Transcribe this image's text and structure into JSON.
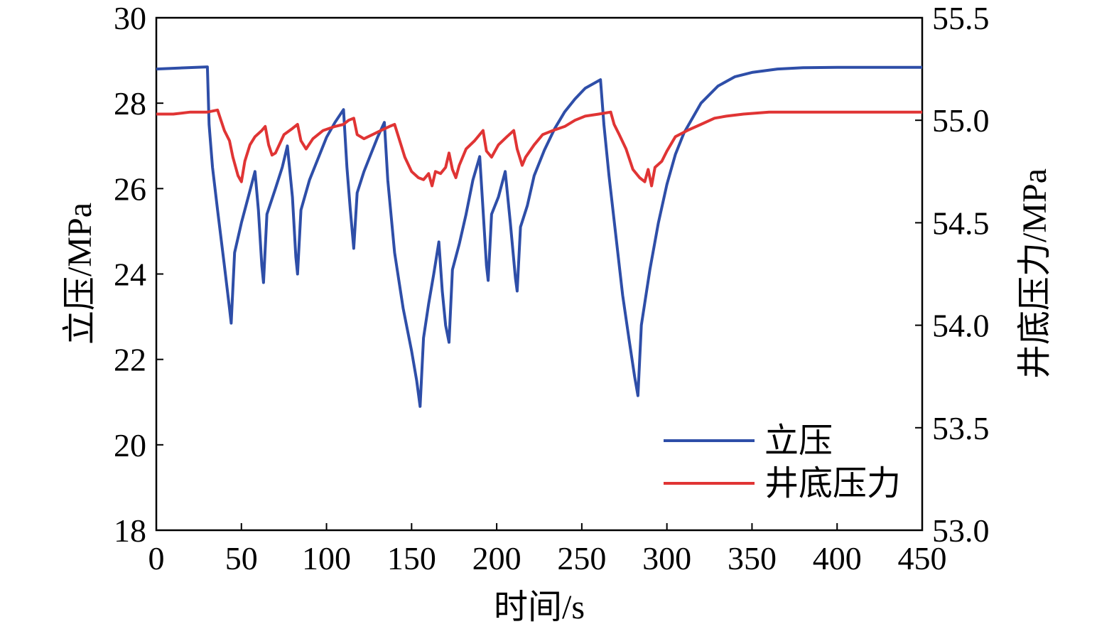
{
  "chart_data": {
    "type": "line",
    "xlabel": "时间/s",
    "ylabel_left": "立压/MPa",
    "ylabel_right": "井底压力/MPa",
    "xlim": [
      0,
      450
    ],
    "ylim_left": [
      18,
      30
    ],
    "ylim_right": [
      53.0,
      55.5
    ],
    "x_ticks": [
      "0",
      "50",
      "100",
      "150",
      "200",
      "250",
      "300",
      "350",
      "400",
      "450"
    ],
    "y_left_ticks": [
      "18",
      "20",
      "22",
      "24",
      "26",
      "28",
      "30"
    ],
    "y_right_ticks": [
      "53.0",
      "53.5",
      "54.0",
      "54.5",
      "55.0",
      "55.5"
    ],
    "grid": false,
    "legend_position": "bottom-right",
    "series": [
      {
        "name": "立压",
        "axis": "left",
        "color": "#2E4EA8",
        "points": [
          [
            0,
            28.8
          ],
          [
            30,
            28.85
          ],
          [
            31,
            27.5
          ],
          [
            33,
            26.5
          ],
          [
            36,
            25.5
          ],
          [
            40,
            24.2
          ],
          [
            43,
            23.2
          ],
          [
            44,
            22.85
          ],
          [
            46,
            24.5
          ],
          [
            50,
            25.2
          ],
          [
            54,
            25.8
          ],
          [
            58,
            26.4
          ],
          [
            60,
            25.5
          ],
          [
            62,
            24.2
          ],
          [
            63,
            23.8
          ],
          [
            65,
            25.4
          ],
          [
            70,
            26.0
          ],
          [
            74,
            26.5
          ],
          [
            77,
            27.0
          ],
          [
            80,
            25.8
          ],
          [
            82,
            24.4
          ],
          [
            83,
            24.0
          ],
          [
            85,
            25.5
          ],
          [
            90,
            26.2
          ],
          [
            95,
            26.7
          ],
          [
            100,
            27.2
          ],
          [
            105,
            27.55
          ],
          [
            110,
            27.85
          ],
          [
            112,
            26.5
          ],
          [
            114,
            25.5
          ],
          [
            116,
            24.6
          ],
          [
            118,
            25.9
          ],
          [
            122,
            26.4
          ],
          [
            126,
            26.8
          ],
          [
            130,
            27.2
          ],
          [
            134,
            27.55
          ],
          [
            136,
            26.2
          ],
          [
            140,
            24.5
          ],
          [
            145,
            23.2
          ],
          [
            150,
            22.2
          ],
          [
            153,
            21.5
          ],
          [
            155,
            20.9
          ],
          [
            157,
            22.5
          ],
          [
            160,
            23.3
          ],
          [
            163,
            24.0
          ],
          [
            166,
            24.75
          ],
          [
            168,
            23.6
          ],
          [
            170,
            22.8
          ],
          [
            172,
            22.4
          ],
          [
            174,
            24.1
          ],
          [
            178,
            24.7
          ],
          [
            182,
            25.4
          ],
          [
            186,
            26.2
          ],
          [
            190,
            26.75
          ],
          [
            192,
            25.5
          ],
          [
            194,
            24.2
          ],
          [
            195,
            23.85
          ],
          [
            197,
            25.4
          ],
          [
            201,
            25.8
          ],
          [
            205,
            26.4
          ],
          [
            208,
            25.2
          ],
          [
            211,
            23.9
          ],
          [
            212,
            23.6
          ],
          [
            214,
            25.1
          ],
          [
            218,
            25.6
          ],
          [
            222,
            26.3
          ],
          [
            228,
            26.9
          ],
          [
            234,
            27.4
          ],
          [
            240,
            27.8
          ],
          [
            246,
            28.1
          ],
          [
            252,
            28.35
          ],
          [
            261,
            28.55
          ],
          [
            263,
            27.5
          ],
          [
            266,
            26.3
          ],
          [
            270,
            24.9
          ],
          [
            274,
            23.5
          ],
          [
            278,
            22.4
          ],
          [
            281,
            21.6
          ],
          [
            283,
            21.15
          ],
          [
            285,
            22.8
          ],
          [
            290,
            24.1
          ],
          [
            295,
            25.2
          ],
          [
            300,
            26.1
          ],
          [
            305,
            26.8
          ],
          [
            310,
            27.3
          ],
          [
            320,
            28.0
          ],
          [
            330,
            28.4
          ],
          [
            340,
            28.62
          ],
          [
            350,
            28.72
          ],
          [
            365,
            28.8
          ],
          [
            380,
            28.83
          ],
          [
            400,
            28.84
          ],
          [
            450,
            28.84
          ]
        ]
      },
      {
        "name": "井底压力",
        "axis": "right",
        "color": "#E03434",
        "points": [
          [
            0,
            55.03
          ],
          [
            10,
            55.03
          ],
          [
            20,
            55.04
          ],
          [
            30,
            55.04
          ],
          [
            36,
            55.05
          ],
          [
            38,
            55.0
          ],
          [
            40,
            54.95
          ],
          [
            43,
            54.9
          ],
          [
            45,
            54.82
          ],
          [
            48,
            54.73
          ],
          [
            50,
            54.7
          ],
          [
            52,
            54.8
          ],
          [
            55,
            54.88
          ],
          [
            58,
            54.92
          ],
          [
            62,
            54.95
          ],
          [
            64,
            54.97
          ],
          [
            66,
            54.88
          ],
          [
            68,
            54.83
          ],
          [
            70,
            54.84
          ],
          [
            75,
            54.93
          ],
          [
            80,
            54.96
          ],
          [
            83,
            54.98
          ],
          [
            85,
            54.9
          ],
          [
            88,
            54.86
          ],
          [
            92,
            54.91
          ],
          [
            98,
            54.95
          ],
          [
            105,
            54.97
          ],
          [
            110,
            54.98
          ],
          [
            113,
            55.0
          ],
          [
            116,
            55.01
          ],
          [
            118,
            54.93
          ],
          [
            122,
            54.91
          ],
          [
            127,
            54.93
          ],
          [
            132,
            54.95
          ],
          [
            137,
            54.97
          ],
          [
            140,
            54.98
          ],
          [
            143,
            54.9
          ],
          [
            146,
            54.82
          ],
          [
            150,
            54.75
          ],
          [
            154,
            54.72
          ],
          [
            157,
            54.71
          ],
          [
            160,
            54.74
          ],
          [
            162,
            54.68
          ],
          [
            164,
            54.75
          ],
          [
            167,
            54.74
          ],
          [
            170,
            54.77
          ],
          [
            172,
            54.84
          ],
          [
            174,
            54.76
          ],
          [
            176,
            54.72
          ],
          [
            178,
            54.78
          ],
          [
            182,
            54.86
          ],
          [
            187,
            54.9
          ],
          [
            192,
            54.95
          ],
          [
            194,
            54.85
          ],
          [
            197,
            54.82
          ],
          [
            201,
            54.88
          ],
          [
            206,
            54.92
          ],
          [
            210,
            54.95
          ],
          [
            212,
            54.86
          ],
          [
            215,
            54.78
          ],
          [
            217,
            54.82
          ],
          [
            222,
            54.88
          ],
          [
            227,
            54.93
          ],
          [
            233,
            54.95
          ],
          [
            240,
            54.97
          ],
          [
            246,
            55.0
          ],
          [
            252,
            55.02
          ],
          [
            260,
            55.03
          ],
          [
            267,
            55.04
          ],
          [
            269,
            54.98
          ],
          [
            272,
            54.93
          ],
          [
            276,
            54.86
          ],
          [
            280,
            54.76
          ],
          [
            284,
            54.72
          ],
          [
            287,
            54.7
          ],
          [
            289,
            54.76
          ],
          [
            291,
            54.68
          ],
          [
            293,
            54.77
          ],
          [
            297,
            54.8
          ],
          [
            300,
            54.85
          ],
          [
            305,
            54.92
          ],
          [
            312,
            54.95
          ],
          [
            320,
            54.98
          ],
          [
            328,
            55.01
          ],
          [
            335,
            55.02
          ],
          [
            345,
            55.03
          ],
          [
            360,
            55.04
          ],
          [
            380,
            55.04
          ],
          [
            450,
            55.04
          ]
        ]
      }
    ]
  }
}
